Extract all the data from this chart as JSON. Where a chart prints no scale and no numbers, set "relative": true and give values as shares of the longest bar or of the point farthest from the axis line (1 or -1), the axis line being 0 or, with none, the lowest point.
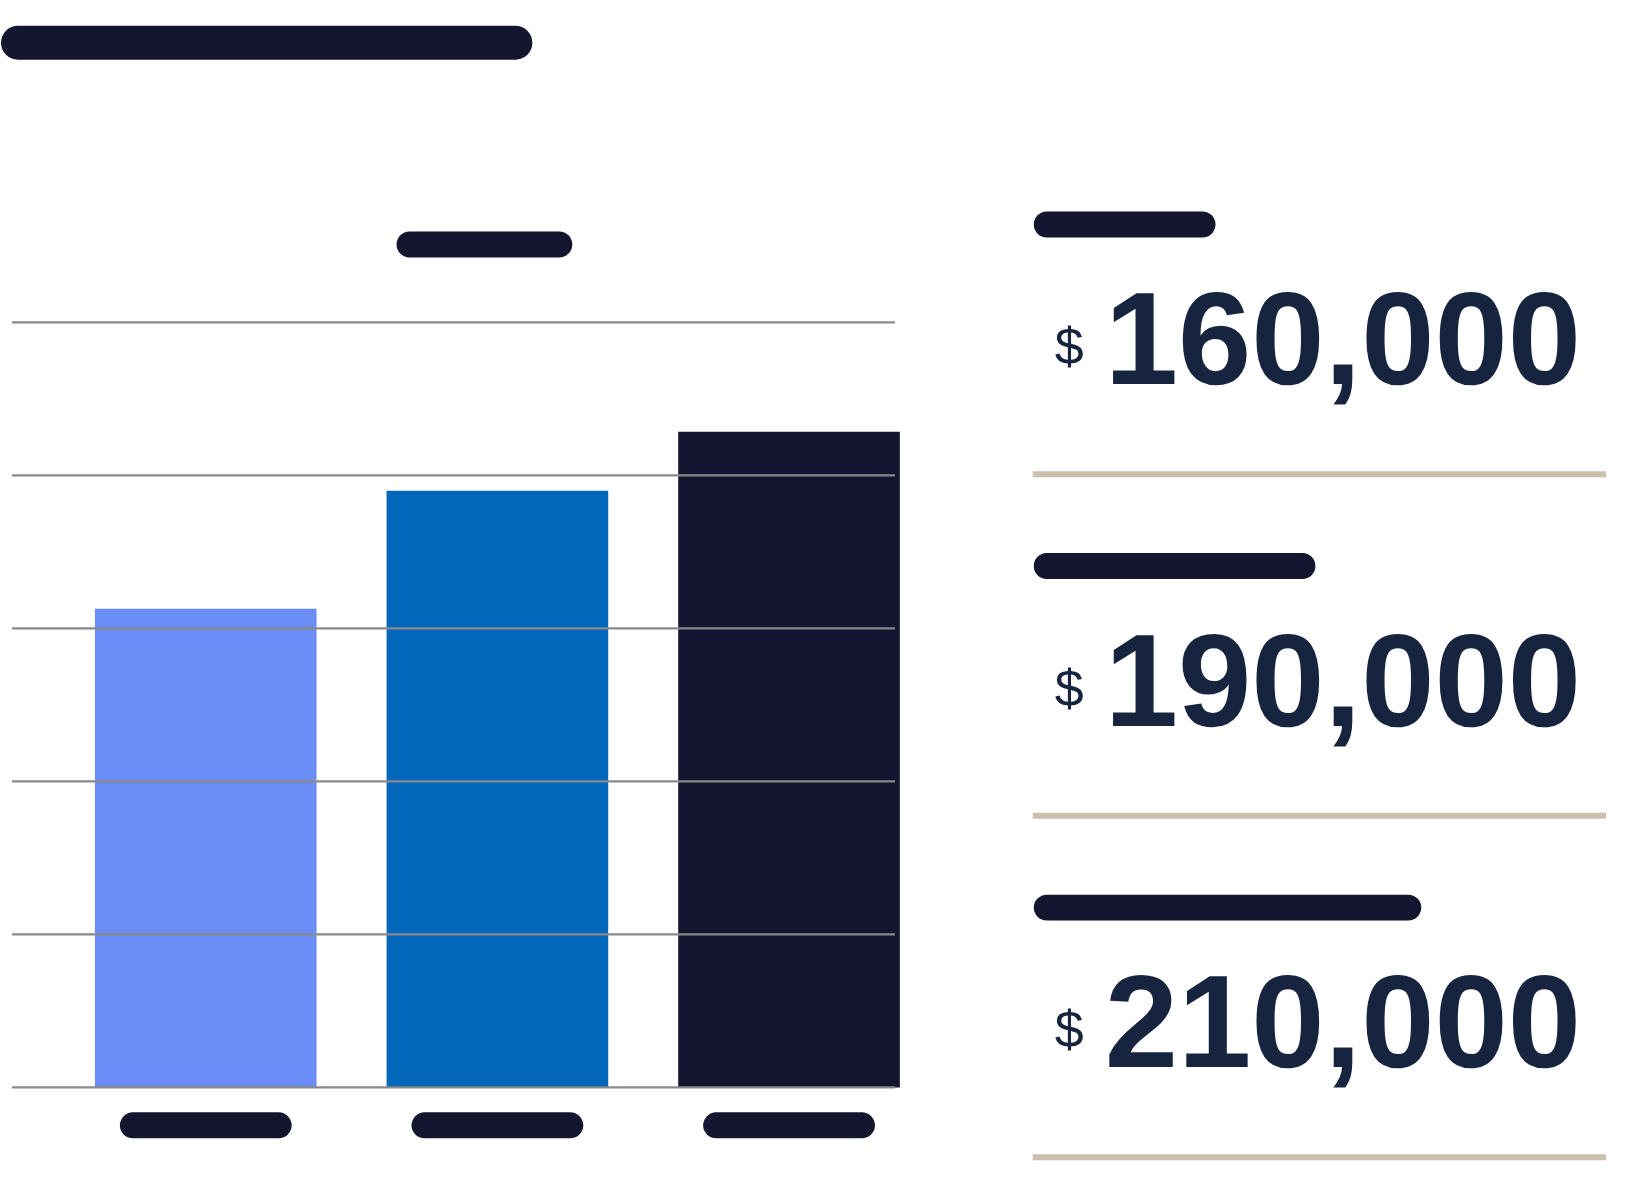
{
  "chart_data": [
    {
      "type": "bar",
      "relative": true,
      "categories": [
        null,
        null,
        null
      ],
      "values": [
        0.73,
        0.91,
        1
      ],
      "colors": [
        "#6a8cf5",
        "#0267bb",
        "#14152f"
      ],
      "grid": true
    },
    {
      "type": "other",
      "annotations": [
        "$160,000",
        "$190,000",
        "$210,000"
      ]
    }
  ]
}
